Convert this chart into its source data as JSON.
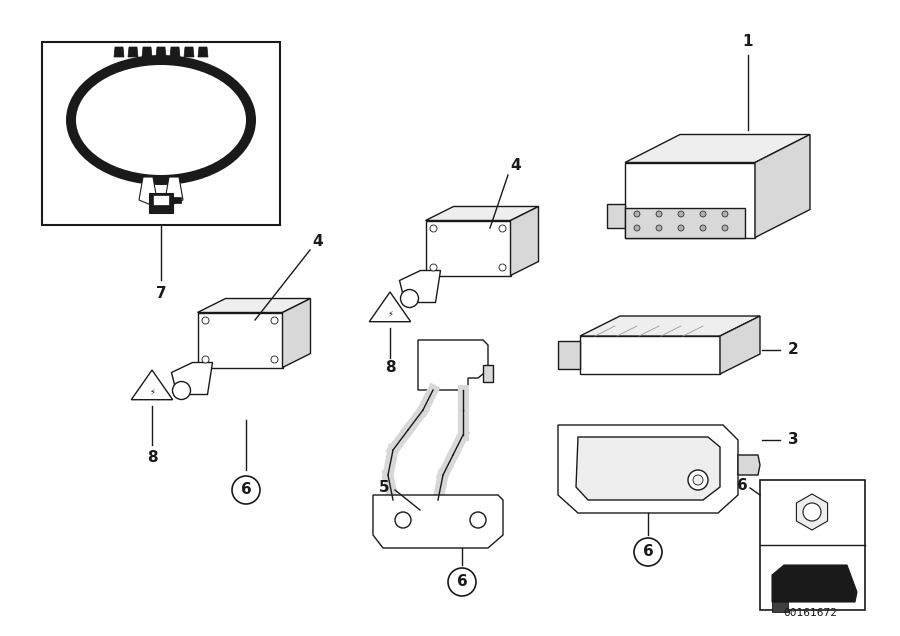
{
  "bg_color": "#ffffff",
  "part_number": "00161672",
  "fig_width": 9.0,
  "fig_height": 6.36,
  "dpi": 100,
  "line_color": "#1a1a1a",
  "line_width": 1.0
}
